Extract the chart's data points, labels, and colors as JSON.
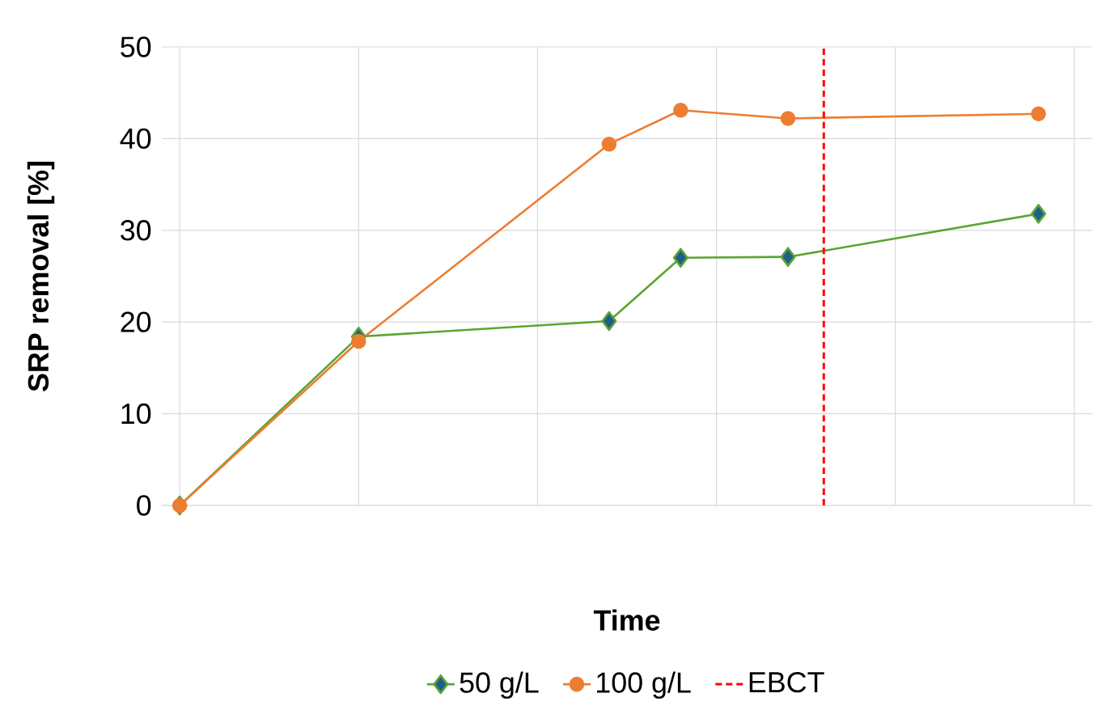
{
  "chart_data": {
    "type": "line",
    "xlabel": "Time",
    "ylabel": "SRP removal [%]",
    "categories": [
      null,
      null,
      null,
      null,
      null,
      null,
      null,
      null,
      null,
      null,
      null,
      null,
      null,
      null,
      null,
      null,
      null,
      null,
      null,
      null,
      null,
      null,
      null,
      null,
      null,
      null
    ],
    "series": [
      {
        "name": "50 g/L",
        "color": "#5aa532",
        "marker": "diamond",
        "values": [
          0,
          null,
          null,
          null,
          null,
          18.4,
          null,
          null,
          null,
          null,
          null,
          null,
          20.1,
          null,
          27.0,
          null,
          null,
          27.1,
          null,
          null,
          null,
          null,
          null,
          null,
          31.8,
          null
        ]
      },
      {
        "name": "100 g/L",
        "color": "#ed7d31",
        "marker": "circle",
        "values": [
          0,
          null,
          null,
          null,
          null,
          17.9,
          null,
          null,
          null,
          null,
          null,
          null,
          39.4,
          null,
          43.1,
          null,
          null,
          42.2,
          null,
          null,
          null,
          null,
          null,
          null,
          42.7,
          null
        ]
      }
    ],
    "ylim": [
      0,
      50
    ],
    "yticks": [
      0,
      10,
      20,
      30,
      40,
      50
    ],
    "annotations": [
      "EBCT"
    ],
    "grid": true,
    "legend": "bottom",
    "line_style": "solid"
  }
}
